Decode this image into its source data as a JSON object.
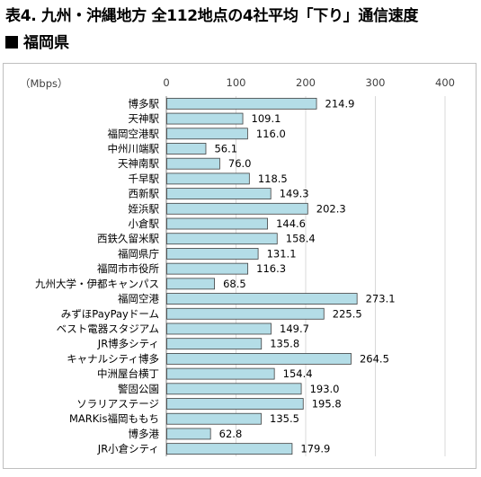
{
  "title": "表4. 九州・沖縄地方 全112地点の4社平均「下り」通信速度",
  "subtitle": "福岡県",
  "chart_data": {
    "type": "bar",
    "orientation": "horizontal",
    "unit_label": "（Mbps）",
    "xlim": [
      0,
      400
    ],
    "xticks": [
      0,
      100,
      200,
      300,
      400
    ],
    "grid": true,
    "bar_color": "#b4dde7",
    "categories": [
      "博多駅",
      "天神駅",
      "福岡空港駅",
      "中州川端駅",
      "天神南駅",
      "千早駅",
      "西新駅",
      "姪浜駅",
      "小倉駅",
      "西鉄久留米駅",
      "福岡県庁",
      "福岡市市役所",
      "九州大学・伊都キャンパス",
      "福岡空港",
      "みずほPayPayドーム",
      "ベスト電器スタジアム",
      "JR博多シティ",
      "キャナルシティ博多",
      "中洲屋台横丁",
      "警固公園",
      "ソラリアステージ",
      "MARKis福岡ももち",
      "博多港",
      "JR小倉シティ"
    ],
    "values": [
      214.9,
      109.1,
      116.0,
      56.1,
      76.0,
      118.5,
      149.3,
      202.3,
      144.6,
      158.4,
      131.1,
      116.3,
      68.5,
      273.1,
      225.5,
      149.7,
      135.8,
      264.5,
      154.4,
      193.0,
      195.8,
      135.5,
      62.8,
      179.9
    ],
    "value_labels": [
      "214.9",
      "109.1",
      "116.0",
      "56.1",
      "76.0",
      "118.5",
      "149.3",
      "202.3",
      "144.6",
      "158.4",
      "131.1",
      "116.3",
      "68.5",
      "273.1",
      "225.5",
      "149.7",
      "135.8",
      "264.5",
      "154.4",
      "193.0",
      "195.8",
      "135.5",
      "62.8",
      "179.9"
    ]
  }
}
